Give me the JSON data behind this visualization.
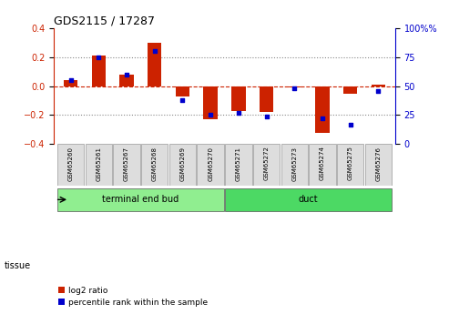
{
  "title": "GDS2115 / 17287",
  "samples": [
    "GSM65260",
    "GSM65261",
    "GSM65267",
    "GSM65268",
    "GSM65269",
    "GSM65270",
    "GSM65271",
    "GSM65272",
    "GSM65273",
    "GSM65274",
    "GSM65275",
    "GSM65276"
  ],
  "log2_ratio": [
    0.04,
    0.21,
    0.08,
    0.3,
    -0.07,
    -0.23,
    -0.17,
    -0.18,
    -0.01,
    -0.32,
    -0.05,
    0.01
  ],
  "percentile": [
    55,
    75,
    60,
    80,
    38,
    25,
    27,
    24,
    48,
    22,
    17,
    46
  ],
  "groups": [
    {
      "label": "terminal end bud",
      "indices": [
        0,
        1,
        2,
        3,
        4,
        5
      ],
      "color": "#90EE90"
    },
    {
      "label": "duct",
      "indices": [
        6,
        7,
        8,
        9,
        10,
        11
      ],
      "color": "#4CD964"
    }
  ],
  "ylim_left": [
    -0.4,
    0.4
  ],
  "ylim_right": [
    0,
    100
  ],
  "yticks_left": [
    -0.4,
    -0.2,
    0.0,
    0.2,
    0.4
  ],
  "yticks_right": [
    0,
    25,
    50,
    75,
    100
  ],
  "bar_color": "#CC2200",
  "dot_color": "#0000CC",
  "hline_color": "#CC2200",
  "dotted_color": "#888888",
  "tissue_label": "tissue",
  "legend_log2": "log2 ratio",
  "legend_pct": "percentile rank within the sample",
  "background_color": "#ffffff",
  "left_axis_color": "#CC2200",
  "right_axis_color": "#0000CC"
}
